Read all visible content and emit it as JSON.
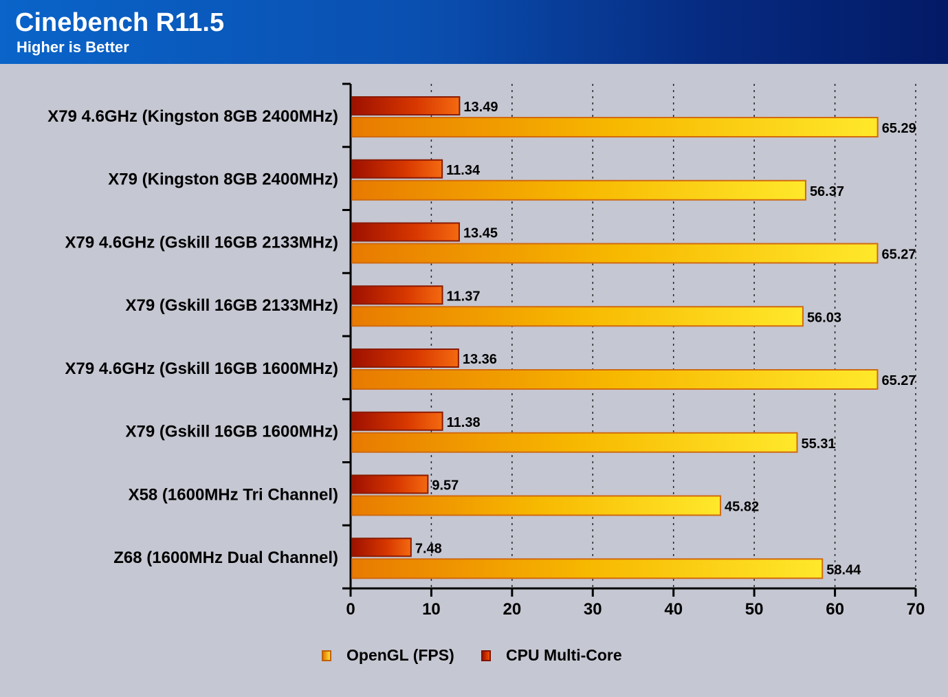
{
  "header": {
    "title": "Cinebench R11.5",
    "subtitle": "Higher is Better"
  },
  "colors": {
    "background": "#c5c7d2",
    "header_start": "#0a64c9",
    "header_end": "#031a66",
    "opengl": "#f5b800",
    "cpu": "#d43000"
  },
  "chart_data": {
    "type": "bar",
    "orientation": "horizontal",
    "categories": [
      "X79 4.6GHz (Kingston 8GB 2400MHz)",
      "X79 (Kingston 8GB 2400MHz)",
      "X79 4.6GHz (Gskill 16GB 2133MHz)",
      "X79 (Gskill 16GB 2133MHz)",
      "X79 4.6GHz (Gskill 16GB 1600MHz)",
      "X79 (Gskill 16GB 1600MHz)",
      "X58 (1600MHz Tri Channel)",
      "Z68 (1600MHz Dual Channel)"
    ],
    "series": [
      {
        "name": "CPU Multi-Core",
        "values": [
          13.49,
          11.34,
          13.45,
          11.37,
          13.36,
          11.38,
          9.57,
          7.48
        ]
      },
      {
        "name": "OpenGL (FPS)",
        "values": [
          65.29,
          56.37,
          65.27,
          56.03,
          65.27,
          55.31,
          45.82,
          58.44
        ]
      }
    ],
    "xlim": [
      0,
      70
    ],
    "xticks": [
      0,
      10,
      20,
      30,
      40,
      50,
      60,
      70
    ],
    "grid": "vertical dotted",
    "legend_position": "bottom",
    "legend": [
      "OpenGL (FPS)",
      "CPU Multi-Core"
    ]
  }
}
